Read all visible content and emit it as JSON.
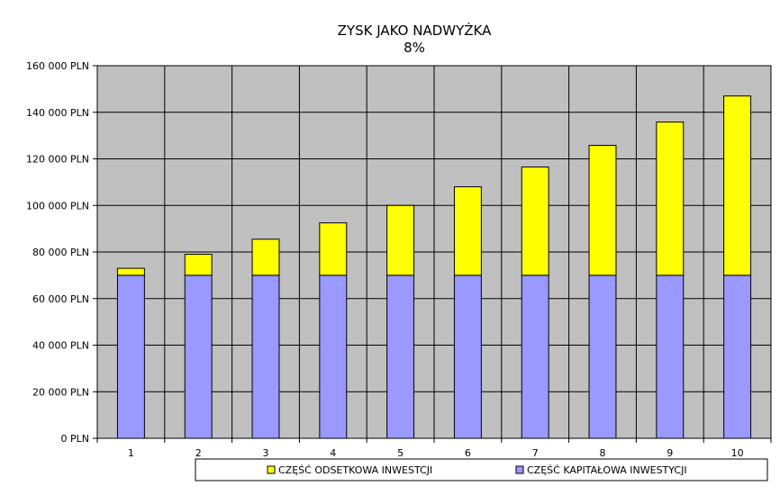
{
  "chart_data": {
    "type": "bar",
    "stacked": true,
    "title": "ZYSK JAKO NADWYŻKA",
    "subtitle": "8%",
    "xlabel": "",
    "ylabel": "",
    "categories": [
      "1",
      "2",
      "3",
      "4",
      "5",
      "6",
      "7",
      "8",
      "9",
      "10"
    ],
    "series": [
      {
        "name": "CZĘŚĆ KAPITAŁOWA INWESTYCJI",
        "color": "#9999ff",
        "values": [
          70000,
          70000,
          70000,
          70000,
          70000,
          70000,
          70000,
          70000,
          70000,
          70000
        ]
      },
      {
        "name": "CZĘŚĆ ODSETKOWA INWESTCJI",
        "color": "#ffff00",
        "values": [
          3000,
          9000,
          15500,
          22500,
          30000,
          38000,
          46500,
          55800,
          65800,
          77000
        ]
      }
    ],
    "ylim": [
      0,
      160000
    ],
    "yticks": [
      "0 PLN",
      "20 000 PLN",
      "40 000 PLN",
      "60 000 PLN",
      "80 000 PLN",
      "100 000 PLN",
      "120 000 PLN",
      "140 000 PLN",
      "160 000 PLN"
    ],
    "ytick_values": [
      0,
      20000,
      40000,
      60000,
      80000,
      100000,
      120000,
      140000,
      160000
    ],
    "grid": true,
    "plot_background": "#c0c0c0",
    "legend_position": "bottom",
    "legend_order": [
      "CZĘŚĆ ODSETKOWA INWESTCJI",
      "CZĘŚĆ KAPITAŁOWA INWESTYCJI"
    ]
  }
}
